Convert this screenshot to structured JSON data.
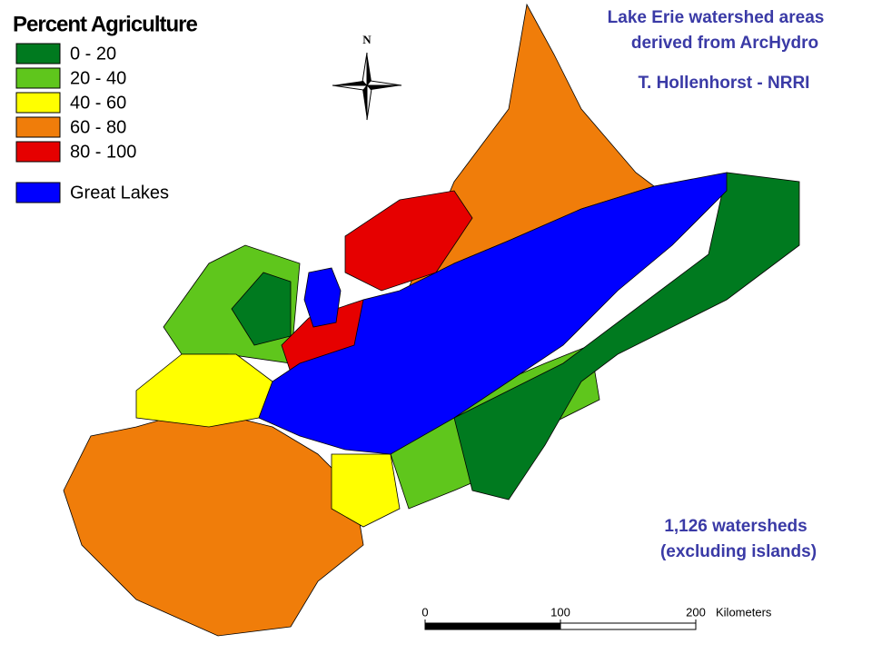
{
  "legend": {
    "title": "Percent Agriculture",
    "items": [
      {
        "label": "0 - 20",
        "color": "#007a1f"
      },
      {
        "label": "20 - 40",
        "color": "#5fc61c"
      },
      {
        "label": "40 - 60",
        "color": "#ffff00"
      },
      {
        "label": "60 - 80",
        "color": "#f07d0a"
      },
      {
        "label": "80 - 100",
        "color": "#e60000"
      },
      {
        "label": "Great Lakes",
        "color": "#0000ff"
      }
    ]
  },
  "north": "N",
  "annotations": [
    "Lake Erie watershed areas",
    "derived from ArcHydro",
    "T. Hollenhorst - NRRI",
    "1,126 watersheds",
    "(excluding islands)"
  ],
  "scale": {
    "ticks": [
      0,
      100,
      200
    ],
    "unit": "Kilometers"
  }
}
